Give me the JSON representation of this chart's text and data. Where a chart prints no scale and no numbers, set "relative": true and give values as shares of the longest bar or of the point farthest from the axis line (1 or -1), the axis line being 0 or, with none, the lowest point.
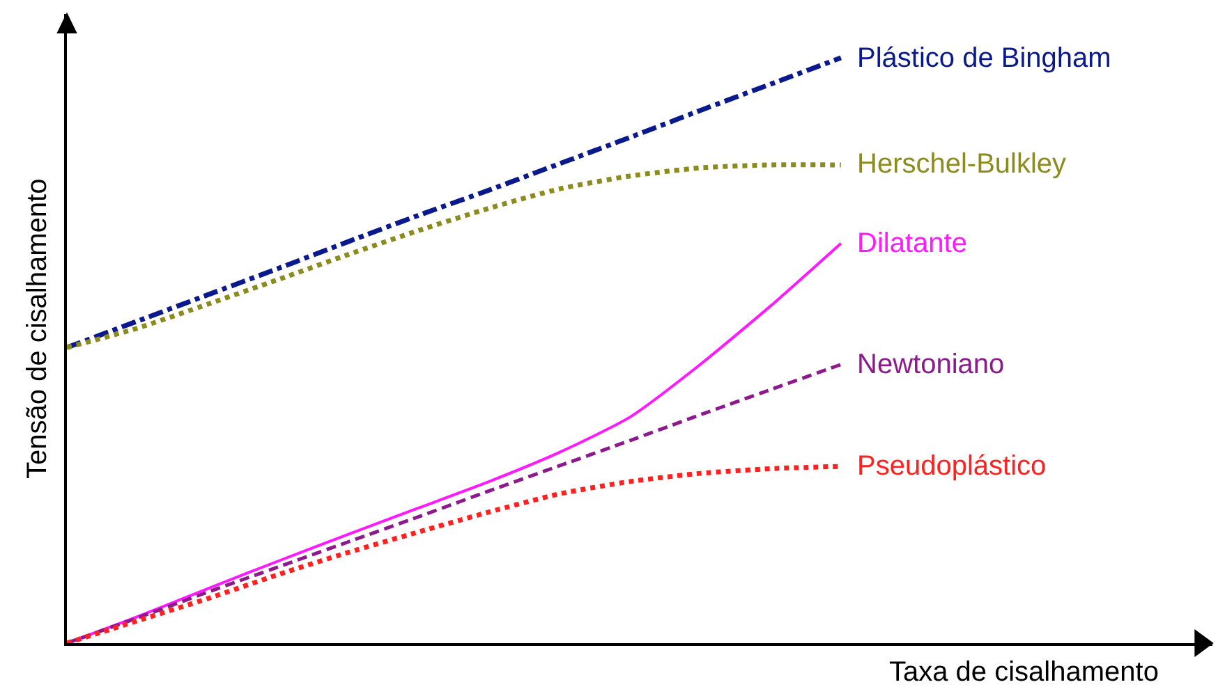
{
  "chart_data": {
    "type": "line",
    "relative": true,
    "xlabel": "Taxa de cisalhamento",
    "ylabel": "Tensão de cisalhamento",
    "legend": false,
    "marker": "none",
    "categories": [
      null,
      null,
      null,
      null,
      null,
      null,
      null,
      null,
      null,
      null,
      null,
      null
    ],
    "series": [
      {
        "name": "Plástico de Bingham",
        "color": "#0a1a8c",
        "line_style": "dashdot",
        "values": [
          0.505,
          0.55,
          0.595,
          0.64,
          0.686,
          0.731,
          0.774,
          0.819,
          0.864,
          0.91,
          0.955,
          1.0
        ]
      },
      {
        "name": "Herschel-Bulkley",
        "color": "#8c8c1e",
        "line_style": "dotted",
        "values": [
          0.505,
          0.538,
          0.579,
          0.621,
          0.664,
          0.705,
          0.743,
          0.776,
          0.798,
          0.812,
          0.817,
          0.817
        ]
      },
      {
        "name": "Dilatante",
        "color": "#ff1aff",
        "line_style": "solid",
        "values": [
          0,
          0.045,
          0.093,
          0.14,
          0.186,
          0.231,
          0.276,
          0.326,
          0.386,
          0.476,
          0.576,
          0.683
        ]
      },
      {
        "name": "Newtoniano",
        "color": "#8c1a8c",
        "line_style": "dashed",
        "values": [
          0,
          0.043,
          0.087,
          0.13,
          0.173,
          0.216,
          0.26,
          0.303,
          0.346,
          0.39,
          0.433,
          0.476
        ]
      },
      {
        "name": "Pseudoplástico",
        "color": "#ff2020",
        "line_style": "dotted",
        "values": [
          0,
          0.038,
          0.076,
          0.117,
          0.155,
          0.19,
          0.224,
          0.255,
          0.276,
          0.29,
          0.298,
          0.302
        ]
      }
    ]
  }
}
